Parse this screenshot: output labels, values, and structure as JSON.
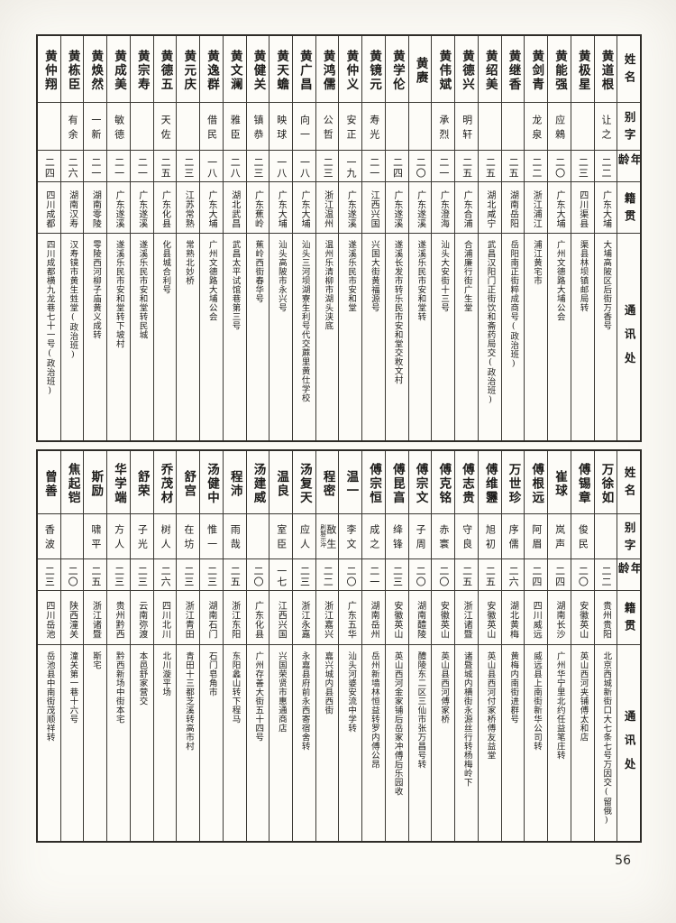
{
  "page_number": "56",
  "row_labels": [
    "姓名",
    "别字",
    "年龄",
    "籍贯",
    "通讯处"
  ],
  "tables": [
    {
      "name": "huang-surname-table",
      "people": [
        {
          "name": "黄道根",
          "alias": "让之",
          "age": "二二",
          "native": "广东大埔",
          "addr": "大埔高陂区后街万香号"
        },
        {
          "name": "黄极星",
          "alias": "",
          "age": "二三",
          "native": "四川渠县",
          "addr": "渠县林坝镇邮局转"
        },
        {
          "name": "黄能强",
          "alias": "应鶆",
          "age": "二〇",
          "native": "广东大埔",
          "addr": "广州文德路大埔公会"
        },
        {
          "name": "黄剑青",
          "alias": "龙泉",
          "age": "二二",
          "native": "浙江浦江",
          "addr": "浦江黄宅市"
        },
        {
          "name": "黄继香",
          "alias": "",
          "age": "二五",
          "native": "湖南岳阳",
          "addr": "岳阳南正街粹成商号(政治班)"
        },
        {
          "name": "黄绍美",
          "alias": "",
          "age": "二五",
          "native": "湖北咸宁",
          "addr": "武昌汉阳门正街饮和斋药局交(政治班)"
        },
        {
          "name": "黄德兴",
          "alias": "明轩",
          "age": "二五",
          "native": "广东合浦",
          "addr": "合浦廉行街广生堂"
        },
        {
          "name": "黄伟斌",
          "alias": "承烈",
          "age": "二一",
          "native": "广东澄海",
          "addr": "汕头大安街十三号"
        },
        {
          "name": "黄赓",
          "alias": "",
          "age": "二〇",
          "native": "广东遂溪",
          "addr": "遂溪乐民市安和堂转"
        },
        {
          "name": "黄学伦",
          "alias": "",
          "age": "二四",
          "native": "广东遂溪",
          "addr": "遂溪长发市转乐民市安和堂交敉文村"
        },
        {
          "name": "黄镜元",
          "alias": "寿光",
          "age": "二一",
          "native": "江西兴国",
          "addr": "兴国大街黄福源号"
        },
        {
          "name": "黄仲义",
          "alias": "安正",
          "age": "一九",
          "native": "广东遂溪",
          "addr": "遂溪乐民市安和堂"
        },
        {
          "name": "黄鸿儒",
          "alias": "公哲",
          "age": "二三",
          "native": "浙江温州",
          "addr": "温州乐清柳市湖头浃底"
        },
        {
          "name": "黄广昌",
          "alias": "向一",
          "age": "一八",
          "native": "广东大埔",
          "addr": "汕头三河坝湖寮生利号代交蔴里黄仕学校"
        },
        {
          "name": "黄天蟾",
          "alias": "映球",
          "age": "一八",
          "native": "广东大埔",
          "addr": "汕头高陂市永兴号"
        },
        {
          "name": "黄健关",
          "alias": "镇恭",
          "age": "二三",
          "native": "广东蕉岭",
          "addr": "蕉岭西街春华号"
        },
        {
          "name": "黄文澜",
          "alias": "雅臣",
          "age": "二八",
          "native": "湖北武昌",
          "addr": "武昌太平试馆巷第三号"
        },
        {
          "name": "黄逸群",
          "alias": "借民",
          "age": "一八",
          "native": "广东大埔",
          "addr": "广州文德路大埔公会"
        },
        {
          "name": "黄元庆",
          "alias": "",
          "age": "二三",
          "native": "江苏常熟",
          "addr": "常熟北妙桥"
        },
        {
          "name": "黄德五",
          "alias": "天佐",
          "age": "二五",
          "native": "广东化县",
          "addr": "化县城合利号"
        },
        {
          "name": "黄宗寿",
          "alias": "",
          "age": "二一",
          "native": "广东遂溪",
          "addr": "遂溪乐民市安和堂转民城"
        },
        {
          "name": "黄成美",
          "alias": "敏德",
          "age": "二一",
          "native": "广东遂溪",
          "addr": "遂溪乐民市安和堂转下坡村"
        },
        {
          "name": "黄焕然",
          "alias": "一新",
          "age": "二一",
          "native": "湖南零陵",
          "addr": "零陵西河柳子庙黄义成转"
        },
        {
          "name": "黄栋臣",
          "alias": "有余",
          "age": "二六",
          "native": "湖南汉寿",
          "addr": "汉寿镜市黄生甡堂(政治班)"
        },
        {
          "name": "黄仲翔",
          "alias": "",
          "age": "二四",
          "native": "四川成都",
          "addr": "四川成都横九龙巷七十一号(政治班)"
        }
      ]
    },
    {
      "name": "mixed-surname-table",
      "people": [
        {
          "name": "万徐如",
          "alias": "",
          "age": "二二",
          "native": "贵州贵阳",
          "addr": "北京西城新街口大七条七号万因交(留俄)"
        },
        {
          "name": "傅锡章",
          "alias": "俊民",
          "age": "二〇",
          "native": "安徽英山",
          "addr": "英山西河夹铺傅太和店"
        },
        {
          "name": "崔球",
          "alias": "岚声",
          "age": "二四",
          "native": "湖南长沙",
          "addr": "广州华宁里北约任益笔庄转"
        },
        {
          "name": "傅根远",
          "alias": "阿眉",
          "age": "二四",
          "native": "四川威远",
          "addr": "威远县上南街新华公司转"
        },
        {
          "name": "万世珍",
          "alias": "序儒",
          "age": "二六",
          "native": "湖北黄梅",
          "addr": "黄梅内南街进群号"
        },
        {
          "name": "傅维靋",
          "alias": "旭初",
          "age": "二五",
          "native": "安徽英山",
          "addr": "英山县西河付家桥傅友益堂"
        },
        {
          "name": "傅志贵",
          "alias": "守良",
          "age": "二五",
          "native": "浙江诸暨",
          "addr": "诸暨城内横街永源丝行转杨梅岭下"
        },
        {
          "name": "傅克铭",
          "alias": "赤寰",
          "age": "二〇",
          "native": "安徽英山",
          "addr": "英山县西河傅家桥"
        },
        {
          "name": "傅宗文",
          "alias": "子周",
          "age": "二〇",
          "native": "湖南醴陵",
          "addr": "醴陵东二区三仙市张万昌号转"
        },
        {
          "name": "傅昆亯",
          "alias": "绛锋",
          "age": "二三",
          "native": "安徽英山",
          "addr": "英山西河金家铺后岳家冲傅后乐园收"
        },
        {
          "name": "傅宗恒",
          "alias": "成之",
          "age": "二一",
          "native": "湖南岳州",
          "addr": "岳州新墙林恒益转罗内傅公昂"
        },
        {
          "name": "温一",
          "alias": "李文",
          "age": "二〇",
          "native": "广东五华",
          "addr": "汕头河婆安流中学转"
        },
        {
          "name": "程密",
          "alias": "敔生",
          "alias_note": "刷解示冲",
          "age": "二二",
          "native": "浙江嘉兴",
          "addr": "嘉兴城内县西街"
        },
        {
          "name": "汤复天",
          "alias": "应人",
          "age": "二三",
          "native": "浙江永嘉",
          "addr": "永嘉县府前永西寄宿舍转"
        },
        {
          "name": "温良",
          "alias": "室臣",
          "age": "一七",
          "native": "江西兴国",
          "addr": "兴国荣贤市惠通商店"
        },
        {
          "name": "汤建威",
          "alias": "",
          "age": "二〇",
          "native": "广东化县",
          "addr": "广州存善大街五十四号"
        },
        {
          "name": "程沛",
          "alias": "雨哉",
          "age": "二五",
          "native": "浙江东阳",
          "addr": "东阳蠡山转下程马"
        },
        {
          "name": "汤健中",
          "alias": "惟一",
          "age": "二三",
          "native": "湖南石门",
          "addr": "石门皂角市"
        },
        {
          "name": "舒宫",
          "alias": "在坊",
          "age": "二三",
          "native": "浙江青田",
          "addr": "青田十三都芝溪转高市村"
        },
        {
          "name": "乔茂材",
          "alias": "树人",
          "age": "二六",
          "native": "四川北川",
          "addr": "北川漩平场"
        },
        {
          "name": "舒荣",
          "alias": "子光",
          "age": "二三",
          "native": "云南弥渡",
          "addr": "本邑舒家营交"
        },
        {
          "name": "华学端",
          "alias": "方人",
          "age": "二三",
          "native": "贵州黔西",
          "addr": "黔西新场中街本宅"
        },
        {
          "name": "斯励",
          "alias": "啸平",
          "age": "二五",
          "native": "浙江诸暨",
          "addr": "斯宅"
        },
        {
          "name": "焦起铠",
          "alias": "",
          "age": "二〇",
          "native": "陕西潼关",
          "addr": "潼关第一巷十六号"
        },
        {
          "name": "曾善",
          "alias": "香波",
          "age": "二三",
          "native": "四川岳池",
          "addr": "岳池县中南街茂顺祥转"
        }
      ]
    }
  ]
}
